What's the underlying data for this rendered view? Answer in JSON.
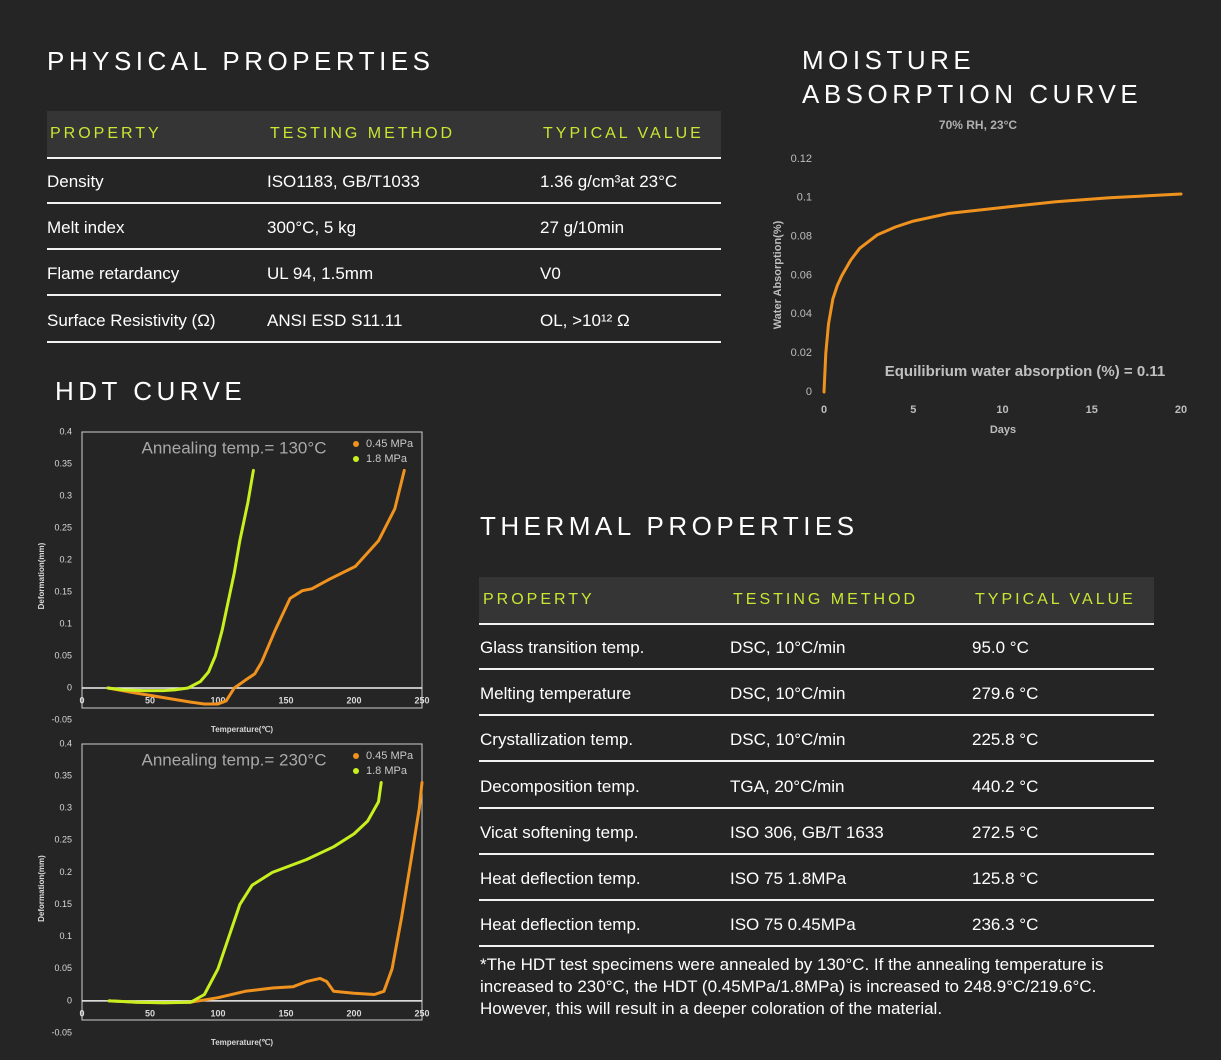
{
  "physical_properties": {
    "title": "PHYSICAL PROPERTIES",
    "headers": [
      "PROPERTY",
      "TESTING METHOD",
      "TYPICAL VALUE"
    ],
    "rows": [
      [
        "Density",
        "ISO1183, GB/T1033",
        "1.36 g/cm³at 23°C"
      ],
      [
        "Melt index",
        "300°C, 5 kg",
        "27 g/10min"
      ],
      [
        "Flame retardancy",
        "UL 94, 1.5mm",
        "V0"
      ],
      [
        "Surface Resistivity (Ω)",
        "ANSI ESD S11.11",
        "OL, >10¹² Ω"
      ]
    ]
  },
  "moisture_title": "MOISTURE ABSORPTION CURVE",
  "hdt_title": "HDT CURVE",
  "thermal_properties": {
    "title": "THERMAL PROPERTIES",
    "headers": [
      "PROPERTY",
      "TESTING METHOD",
      "TYPICAL VALUE"
    ],
    "rows": [
      [
        "Glass transition temp.",
        "DSC, 10°C/min",
        "95.0 °C"
      ],
      [
        "Melting temperature",
        "DSC, 10°C/min",
        "279.6 °C"
      ],
      [
        "Crystallization temp.",
        "DSC, 10°C/min",
        "225.8 °C"
      ],
      [
        "Decomposition temp.",
        "TGA, 20°C/min",
        "440.2 °C"
      ],
      [
        "Vicat softening temp.",
        "ISO 306, GB/T 1633",
        "272.5 °C"
      ],
      [
        "Heat deflection temp.",
        "ISO 75 1.8MPa",
        "125.8 °C"
      ],
      [
        "Heat deflection temp.",
        "ISO 75 0.45MPa",
        "236.3 °C"
      ]
    ],
    "footnote": "*The HDT test specimens were annealed by 130°C. If the annealing temperature is increased to 230°C, the HDT (0.45MPa/1.8MPa) is increased to 248.9°C/219.6°C. However, this will result in a deeper coloration of the material."
  },
  "chart_data": [
    {
      "type": "line",
      "subtitle": "70% RH, 23°C",
      "x_label": "Days",
      "y_label": "Water Absorption(%)",
      "annotation": "Equilibrium water absorption (%) = 0.11",
      "color": "#f0921e",
      "x": [
        0,
        0.1,
        0.25,
        0.5,
        0.75,
        1,
        1.5,
        2,
        3,
        4,
        5,
        7,
        10,
        13,
        16,
        20
      ],
      "values": [
        0,
        0.02,
        0.035,
        0.048,
        0.055,
        0.06,
        0.068,
        0.074,
        0.081,
        0.085,
        0.088,
        0.092,
        0.095,
        0.098,
        0.1,
        0.102
      ],
      "xlim": [
        0,
        20
      ],
      "xticks": [
        0,
        5,
        10,
        15,
        20
      ],
      "ylim": [
        0,
        0.12
      ],
      "yticks": [
        0,
        0.02,
        0.04,
        0.06,
        0.08,
        0.1,
        0.12
      ]
    },
    {
      "type": "line",
      "annotation": "Annealing temp.= 130°C",
      "x_label": "Temperature(℃)",
      "y_label": "Deformation(mm)",
      "xlim": [
        0,
        250
      ],
      "xticks": [
        0,
        50,
        100,
        150,
        200,
        250
      ],
      "ylim": [
        -0.05,
        0.4
      ],
      "yticks": [
        -0.05,
        0,
        0.05,
        0.1,
        0.15,
        0.2,
        0.25,
        0.3,
        0.35,
        0.4
      ],
      "series": [
        {
          "name": "0.45 MPa",
          "color": "#f0921e",
          "x": [
            19,
            40,
            60,
            80,
            90,
            100,
            106,
            112,
            120,
            127,
            132,
            142,
            153,
            162,
            169,
            182,
            201,
            218,
            230,
            237
          ],
          "values": [
            0,
            -0.008,
            -0.015,
            -0.022,
            -0.025,
            -0.025,
            -0.02,
            0,
            0.012,
            0.022,
            0.04,
            0.09,
            0.14,
            0.152,
            0.155,
            0.17,
            0.19,
            0.23,
            0.28,
            0.34
          ]
        },
        {
          "name": "1.8 MPa",
          "color": "#c8f01e",
          "x": [
            19,
            30,
            45,
            60,
            68,
            78,
            87,
            93,
            98,
            103,
            107,
            112,
            116,
            122,
            126
          ],
          "values": [
            0,
            -0.003,
            -0.004,
            -0.004,
            -0.003,
            0,
            0.01,
            0.025,
            0.05,
            0.09,
            0.13,
            0.18,
            0.23,
            0.29,
            0.34
          ]
        }
      ]
    },
    {
      "type": "line",
      "annotation": "Annealing temp.= 230°C",
      "x_label": "Temperature(℃)",
      "y_label": "Deformation(mm)",
      "xlim": [
        0,
        250
      ],
      "xticks": [
        0,
        50,
        100,
        150,
        200,
        250
      ],
      "ylim": [
        -0.05,
        0.4
      ],
      "yticks": [
        -0.05,
        0,
        0.05,
        0.1,
        0.15,
        0.2,
        0.25,
        0.3,
        0.35,
        0.4
      ],
      "series": [
        {
          "name": "0.45 MPa",
          "color": "#f0921e",
          "x": [
            20,
            40,
            60,
            80,
            100,
            120,
            140,
            155,
            165,
            175,
            180,
            185,
            200,
            215,
            222,
            228,
            235,
            242,
            248,
            250
          ],
          "values": [
            0,
            -0.002,
            -0.003,
            -0.002,
            0.005,
            0.015,
            0.02,
            0.022,
            0.03,
            0.035,
            0.03,
            0.015,
            0.012,
            0.01,
            0.015,
            0.05,
            0.13,
            0.22,
            0.3,
            0.34
          ]
        },
        {
          "name": "1.8 MPa",
          "color": "#c8f01e",
          "x": [
            20,
            40,
            60,
            80,
            90,
            100,
            108,
            116,
            125,
            140,
            165,
            185,
            200,
            210,
            218,
            220
          ],
          "values": [
            0,
            -0.002,
            -0.003,
            -0.002,
            0.01,
            0.05,
            0.1,
            0.15,
            0.18,
            0.2,
            0.22,
            0.24,
            0.26,
            0.28,
            0.31,
            0.34
          ]
        }
      ]
    }
  ]
}
